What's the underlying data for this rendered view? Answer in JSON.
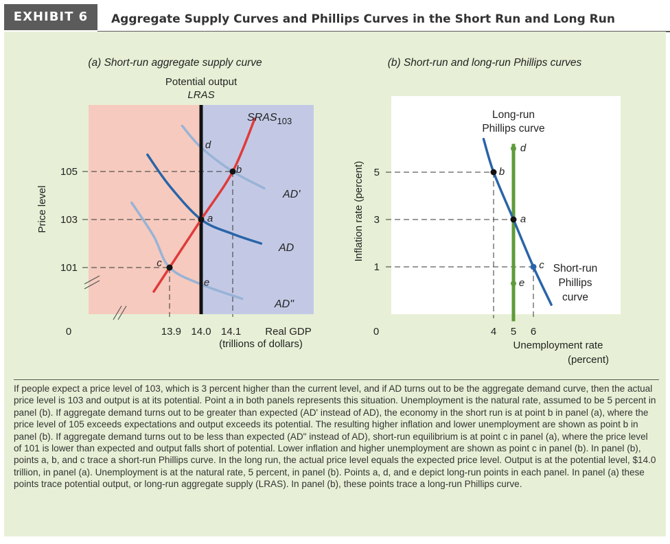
{
  "exhibit": {
    "badge": "EXHIBIT 6",
    "title": "Aggregate Supply Curves and Phillips Curves in the Short Run and Long Run"
  },
  "colors": {
    "panel_bg": "#e7f0d6",
    "shade_left": "#f6cabe",
    "shade_right": "#c3c9e5",
    "sras": "#e03a3a",
    "ad_dark": "#2a64a8",
    "ad_light": "#98b3d6",
    "lras": "#111111",
    "lrpc": "#5f9b3a",
    "srpc": "#2a64a8"
  },
  "chart_data": [
    {
      "type": "line",
      "title": "(a) Short-run aggregate supply curve",
      "xlabel": "Real GDP\n(trillions of dollars)",
      "ylabel": "Price level",
      "x_ticks": [
        "13.9",
        "14.0",
        "14.1"
      ],
      "y_ticks": [
        "105",
        "103",
        "101"
      ],
      "origin_label": "0",
      "vertical_line": {
        "label_top": "Potential output",
        "label": "LRAS",
        "x": 14.0
      },
      "series": [
        {
          "name": "SRAS",
          "name_sub": "103",
          "points": [
            [
              13.85,
              100.0
            ],
            [
              13.9,
              101
            ],
            [
              14.0,
              103
            ],
            [
              14.1,
              105
            ],
            [
              14.17,
              107.2
            ]
          ]
        },
        {
          "name": "AD'",
          "points": [
            [
              13.94,
              106.9
            ],
            [
              14.0,
              106.0
            ],
            [
              14.1,
              105
            ],
            [
              14.2,
              104.3
            ]
          ]
        },
        {
          "name": "AD",
          "points": [
            [
              13.83,
              105.7
            ],
            [
              13.9,
              104.4
            ],
            [
              14.0,
              103
            ],
            [
              14.1,
              102.4
            ],
            [
              14.19,
              102.0
            ]
          ]
        },
        {
          "name": "AD\"",
          "points": [
            [
              13.78,
              103.7
            ],
            [
              13.85,
              102.3
            ],
            [
              13.9,
              101
            ],
            [
              14.0,
              100.3
            ],
            [
              14.13,
              99.7
            ]
          ]
        }
      ],
      "points": [
        {
          "label": "a",
          "x": 14.0,
          "y": 103
        },
        {
          "label": "b",
          "x": 14.1,
          "y": 105
        },
        {
          "label": "c",
          "x": 13.9,
          "y": 101
        },
        {
          "label": "d",
          "x": 14.0,
          "y": 106
        },
        {
          "label": "e",
          "x": 14.0,
          "y": 100.3
        }
      ]
    },
    {
      "type": "line",
      "title": "(b) Short-run and long-run Phillips curves",
      "xlabel": "Unemployment rate\n(percent)",
      "ylabel": "Inflation rate (percent)",
      "x_ticks": [
        "4",
        "5",
        "6"
      ],
      "y_ticks": [
        "5",
        "3",
        "1"
      ],
      "origin_label": "0",
      "series": [
        {
          "name": "Long-run\nPhillips curve",
          "x": 5,
          "y_range": [
            -1.3,
            6.2
          ]
        },
        {
          "name": "Short-run\nPhillips\ncurve",
          "points": [
            [
              3.5,
              6.4
            ],
            [
              4,
              5
            ],
            [
              5,
              3
            ],
            [
              6,
              1
            ],
            [
              6.9,
              -0.6
            ]
          ]
        }
      ],
      "points": [
        {
          "label": "a",
          "x": 5,
          "y": 3
        },
        {
          "label": "b",
          "x": 4,
          "y": 5
        },
        {
          "label": "c",
          "x": 6,
          "y": 1
        },
        {
          "label": "d",
          "x": 5,
          "y": 6
        },
        {
          "label": "e",
          "x": 5,
          "y": 0.3
        }
      ]
    }
  ],
  "caption": "If people expect a price level of 103, which is 3 percent higher than the current level, and if AD turns out to be the aggregate demand curve, then the actual price level is 103 and output is at its potential. Point a in both panels represents this situation. Unemployment is the natural rate, assumed to be 5 percent in panel (b). If aggregate demand turns out to be greater than expected (AD' instead of AD), the economy in the short run is at point b in panel (a), where the price level of 105 exceeds expectations and output exceeds its potential. The resulting higher inflation and lower unemployment are shown as point b in panel (b). If aggregate demand turns out to be less than expected (AD\" instead of AD), short-run equilibrium is at point c in panel (a), where the price level of 101 is lower than expected and output falls short of potential. Lower inflation and higher unemployment are shown as point c in panel (b). In panel (b), points a, b, and c trace a short-run Phillips curve. In the long run, the actual price level equals the expected price level. Output is at the potential level, $14.0 trillion, in panel (a). Unemployment is at the natural rate, 5 percent, in panel (b). Points a, d, and e depict long-run points in each panel. In panel (a) these points trace potential output, or long-run aggregate supply (LRAS). In panel (b), these points trace a long-run Phillips curve."
}
